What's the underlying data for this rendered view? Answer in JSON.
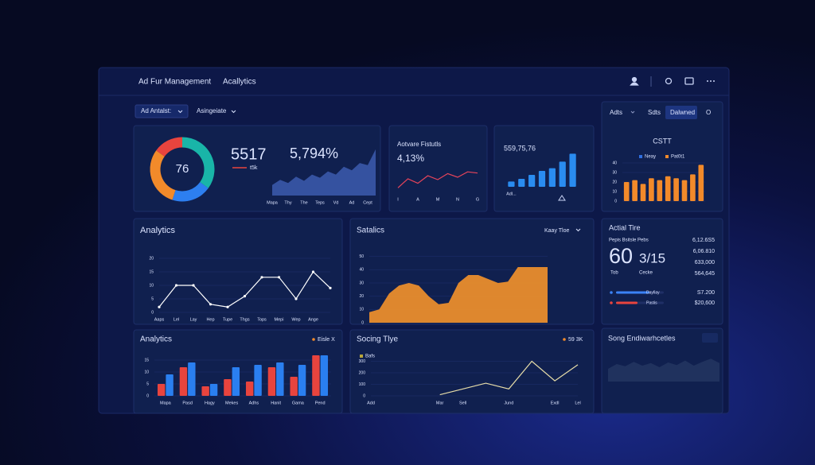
{
  "header": {
    "title": "Ad Fur Management",
    "breadcrumb": "Acallytics"
  },
  "filters": [
    "Ad Antalst:",
    "Asingeiate"
  ],
  "tabs": [
    "Adts",
    "Sdts",
    "Dalwned",
    "O"
  ],
  "overview": {
    "donut": {
      "type": "pie",
      "center_label": "76",
      "values": [
        35,
        20,
        30,
        15
      ],
      "colors": [
        "#19b5a8",
        "#2d7ff0",
        "#f28a2a",
        "#e8443e"
      ]
    },
    "metric": "5517",
    "metric_legend": "t5k",
    "metric_color": "#e8443e",
    "rate": "5,794%",
    "trend": {
      "type": "area",
      "color": "#3a58a8",
      "ylim": [
        0,
        100
      ],
      "categories": [
        "Mapa",
        null,
        "Thy",
        null,
        "The",
        null,
        "Teps",
        null,
        "Vd",
        null,
        "Ad",
        null,
        "Cept",
        null
      ],
      "values": [
        20,
        30,
        24,
        36,
        28,
        40,
        34,
        46,
        40,
        55,
        48,
        62,
        58,
        88
      ]
    }
  },
  "active": {
    "title": "Aotvare Fistutls",
    "value": "4,13%",
    "chart": {
      "type": "line",
      "color": "#e8445a",
      "ylim": [
        0,
        100
      ],
      "categories": [
        "I",
        null,
        "A",
        null,
        "M",
        null,
        "N",
        null,
        "G"
      ],
      "values": [
        15,
        45,
        30,
        55,
        42,
        62,
        50,
        68,
        64
      ]
    }
  },
  "volume": {
    "value": "559,75,76",
    "chart": {
      "type": "bar",
      "color": "#2a8cf0",
      "ylim": [
        0,
        60
      ],
      "categories": [
        "Adl...",
        null,
        null,
        null,
        null,
        null,
        null
      ],
      "values": [
        8,
        12,
        18,
        24,
        28,
        38,
        50
      ]
    }
  },
  "cstt": {
    "title": "CSTT",
    "legend": [
      {
        "name": "Neay",
        "color": "#2f6fe0"
      },
      {
        "name": "Pat0t1",
        "color": "#f28a2a"
      }
    ],
    "chart": {
      "type": "bar",
      "color": "#f28a2a",
      "ylim": [
        0,
        40
      ],
      "yticks": [
        0,
        10,
        20,
        30,
        40
      ],
      "values": [
        20,
        22,
        18,
        24,
        22,
        26,
        24,
        22,
        28,
        38
      ]
    }
  },
  "analytics": {
    "title": "Analytics",
    "chart": {
      "type": "line",
      "color": "#ffffff",
      "markers": true,
      "ylim": [
        0,
        25
      ],
      "yticks": [
        0,
        5,
        10,
        15,
        20
      ],
      "categories": [
        "Aaps",
        "Lel",
        "Lay",
        "Hep",
        "Tupe",
        "Thgs",
        "Tops",
        "Mepi",
        "Wep",
        "Ange",
        null
      ],
      "values": [
        2,
        10,
        10,
        3,
        2,
        6,
        13,
        13,
        5,
        15,
        9
      ]
    }
  },
  "statistics": {
    "title": "Satalics",
    "dropdown": "Kaay Tloe",
    "chart": {
      "type": "area",
      "color": "#f5922a",
      "ylim": [
        0,
        60
      ],
      "yticks": [
        0,
        10,
        20,
        30,
        40,
        50
      ],
      "values": [
        8,
        10,
        22,
        28,
        30,
        28,
        20,
        14,
        15,
        30,
        36,
        36,
        33,
        30,
        31,
        42,
        42,
        42,
        42
      ]
    }
  },
  "actual": {
    "title": "Actial Tire",
    "subtitle": "Pepis Bsitsle Pebs",
    "big": "60",
    "ratio": "3/15",
    "labels": [
      "Tob",
      "Cecke"
    ],
    "values": [
      "6,12.6S5",
      "6,06.810",
      "633,000",
      "564,645"
    ],
    "progress": {
      "xlim": [
        0,
        100
      ],
      "items": [
        {
          "label": "Dayfiay",
          "fill": 70,
          "value": "S7.200",
          "color": "#3b82f6"
        },
        {
          "label": "Pastis",
          "fill": 45,
          "value": "$20,600",
          "color": "#e8443e"
        }
      ]
    }
  },
  "bars": {
    "title": "Analytics",
    "tag": "Eisle X",
    "chart": {
      "type": "bar",
      "ylim": [
        0,
        20
      ],
      "yticks": [
        0,
        5,
        10,
        15
      ],
      "categories": [
        "Mapa",
        "Pasd",
        "Hagy",
        "Mekes",
        "Adhs",
        "Hanit",
        "Gama",
        "Pend"
      ],
      "series": [
        {
          "color": "#e8443e",
          "values": [
            5,
            12,
            4,
            7,
            6,
            12,
            8,
            17
          ]
        },
        {
          "color": "#2a7ff0",
          "values": [
            9,
            14,
            5,
            12,
            13,
            14,
            13,
            17
          ]
        }
      ]
    }
  },
  "scoring": {
    "title": "Socing Tlye",
    "tag": "59 3K",
    "legend": "Bafs",
    "legend_color": "#b8a63a",
    "chart": {
      "type": "line",
      "color": "#e6dca8",
      "ylim": [
        0,
        400
      ],
      "yticks": [
        0,
        100,
        200,
        300
      ],
      "categories": [
        "Add",
        null,
        null,
        "Mar",
        "Sell",
        null,
        "Jund",
        null,
        "Exdl",
        "Lel"
      ],
      "values": [
        null,
        null,
        null,
        10,
        60,
        110,
        60,
        300,
        130,
        270
      ]
    }
  },
  "spark": {
    "title": "Song Endiwarhcetles",
    "chart": {
      "type": "area",
      "color": "#22345f",
      "ylim": [
        0,
        100
      ],
      "values": [
        40,
        55,
        48,
        62,
        50,
        58,
        45,
        60,
        52,
        66,
        50,
        62,
        72,
        58
      ]
    }
  }
}
